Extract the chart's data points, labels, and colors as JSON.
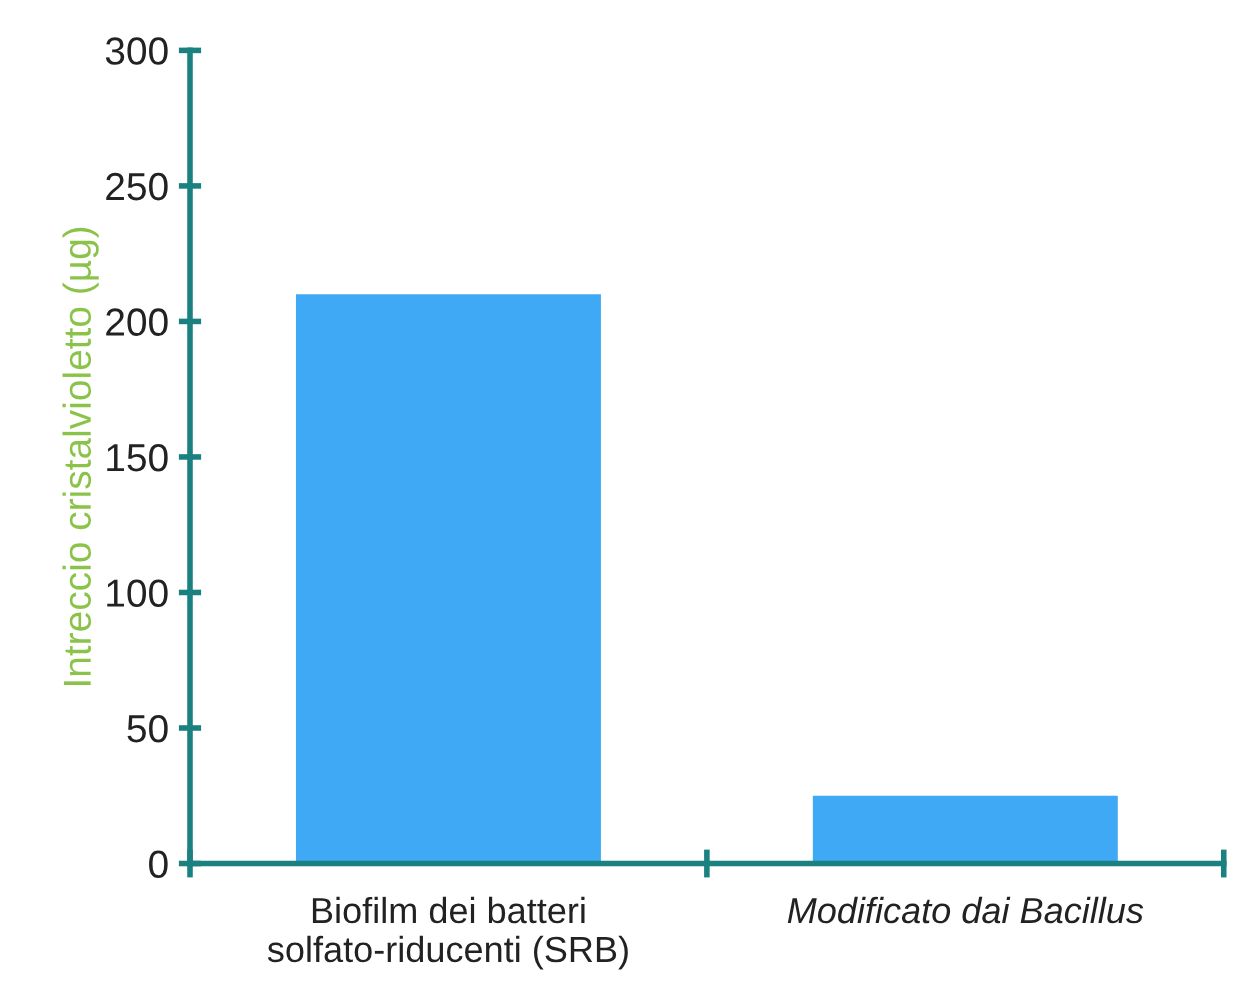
{
  "chart_data": {
    "type": "bar",
    "ylabel": "Intreccio cristalvioletto (µg)",
    "categories": [
      "Biofilm dei batteri\nsolfato-riducenti (SRB)",
      "Modificato dai Bacillus"
    ],
    "values": [
      210,
      25
    ],
    "color": "#3fa9f5",
    "ylim": [
      0,
      300
    ],
    "yticks": [
      0,
      50,
      100,
      150,
      200,
      250,
      300
    ],
    "grid": false
  }
}
